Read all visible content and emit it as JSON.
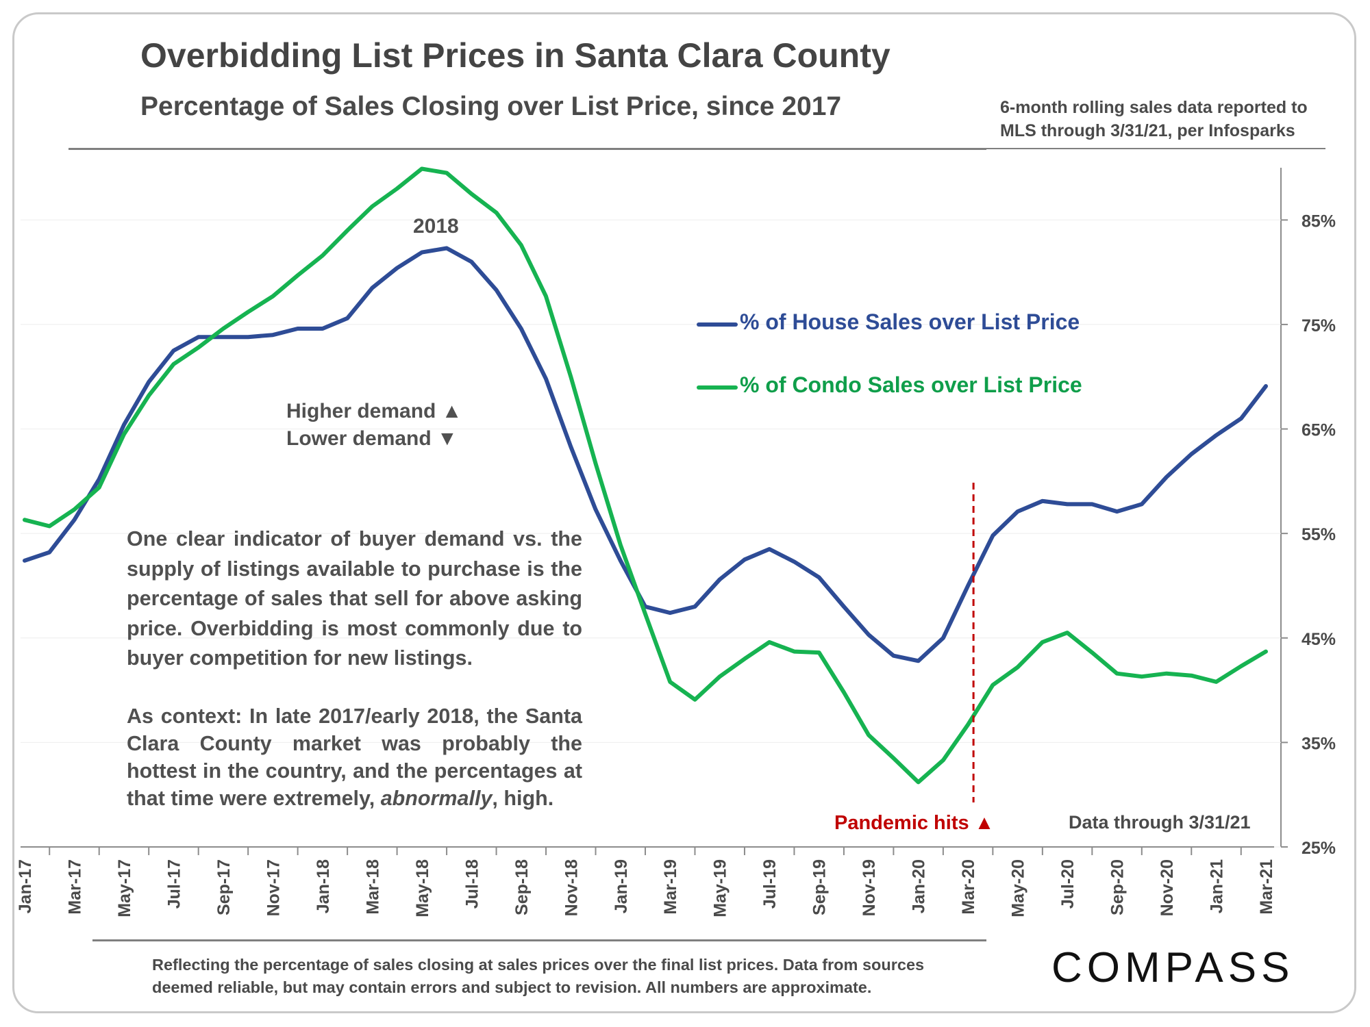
{
  "header": {
    "title": "Overbidding List Prices in Santa Clara County",
    "subtitle": "Percentage of Sales Closing over List Price, since 2017",
    "source_note": "6-month rolling sales data reported to MLS through 3/31/21, per Infosparks"
  },
  "annotations": {
    "peak_label": "2018",
    "higher_demand": "Higher demand ▲",
    "lower_demand": "Lower demand ▼",
    "paragraph1": "One clear indicator of buyer demand vs. the supply of listings available to purchase is the percentage of sales that sell for above asking price. Overbidding is most commonly due to buyer competition for new listings.",
    "paragraph2_start": "As context: In late 2017/early 2018, the Santa Clara County market was probably the hottest in the country, and the percentages at that time were extremely, ",
    "paragraph2_emph": "abnormally",
    "paragraph2_end": ", high.",
    "pandemic": "Pandemic hits ▲",
    "data_through": "Data through 3/31/21"
  },
  "footer": {
    "footnote": "Reflecting the percentage of sales closing at sales prices over the final list prices. Data from sources deemed reliable, but may contain errors and subject to revision. All numbers are approximate.",
    "logo": "COMPASS"
  },
  "colors": {
    "house": "#2e4c96",
    "condo": "#16b351",
    "pandemic_line": "#c00000"
  },
  "chart_data": {
    "type": "line",
    "title": "Overbidding List Prices in Santa Clara County",
    "subtitle": "Percentage of Sales Closing over List Price, since 2017",
    "y_axis_side": "right",
    "ylim": [
      25,
      90
    ],
    "yticks": [
      25,
      35,
      45,
      55,
      65,
      75,
      85
    ],
    "ytick_labels": [
      "25%",
      "35%",
      "45%",
      "55%",
      "65%",
      "75%",
      "85%"
    ],
    "x_tick_labels": [
      "Jan-17",
      "Mar-17",
      "May-17",
      "Jul-17",
      "Sep-17",
      "Nov-17",
      "Jan-18",
      "Mar-18",
      "May-18",
      "Jul-18",
      "Sep-18",
      "Nov-18",
      "Jan-19",
      "Mar-19",
      "May-19",
      "Jul-19",
      "Sep-19",
      "Nov-19",
      "Jan-20",
      "Mar-20",
      "May-20",
      "Jul-20",
      "Sep-20",
      "Nov-20",
      "Jan-21",
      "Mar-21"
    ],
    "x": [
      "Jan-17",
      "Feb-17",
      "Mar-17",
      "Apr-17",
      "May-17",
      "Jun-17",
      "Jul-17",
      "Aug-17",
      "Sep-17",
      "Oct-17",
      "Nov-17",
      "Dec-17",
      "Jan-18",
      "Feb-18",
      "Mar-18",
      "Apr-18",
      "May-18",
      "Jun-18",
      "Jul-18",
      "Aug-18",
      "Sep-18",
      "Oct-18",
      "Nov-18",
      "Dec-18",
      "Jan-19",
      "Feb-19",
      "Mar-19",
      "Apr-19",
      "May-19",
      "Jun-19",
      "Jul-19",
      "Aug-19",
      "Sep-19",
      "Oct-19",
      "Nov-19",
      "Dec-19",
      "Jan-20",
      "Feb-20",
      "Mar-20",
      "Apr-20",
      "May-20",
      "Jun-20",
      "Jul-20",
      "Aug-20",
      "Sep-20",
      "Oct-20",
      "Nov-20",
      "Dec-20",
      "Jan-21",
      "Feb-21",
      "Mar-21"
    ],
    "series": [
      {
        "name": "% of House Sales over List Price",
        "values": [
          52.4,
          53.2,
          56.3,
          60.2,
          65.4,
          69.5,
          72.5,
          73.8,
          73.8,
          73.8,
          74.0,
          74.6,
          74.6,
          75.6,
          78.5,
          80.4,
          81.9,
          82.3,
          81.0,
          78.3,
          74.6,
          69.8,
          63.3,
          57.3,
          52.4,
          48.0,
          47.4,
          48.0,
          50.6,
          52.5,
          53.5,
          52.3,
          50.8,
          48.0,
          45.3,
          43.3,
          42.8,
          45.0,
          50.0,
          54.8,
          57.1,
          58.1,
          57.8,
          57.8,
          57.1,
          57.8,
          60.4,
          62.6,
          64.4,
          66.0,
          69.1
        ]
      },
      {
        "name": "% of Condo Sales over List Price",
        "values": [
          56.3,
          55.7,
          57.3,
          59.4,
          64.5,
          68.2,
          71.2,
          72.8,
          74.6,
          76.2,
          77.7,
          79.7,
          81.6,
          84.0,
          86.3,
          88.0,
          89.9,
          89.5,
          87.5,
          85.7,
          82.6,
          77.7,
          70.0,
          61.7,
          53.9,
          47.3,
          40.8,
          39.1,
          41.3,
          43.0,
          44.6,
          43.7,
          43.6,
          39.8,
          35.7,
          33.5,
          31.2,
          33.3,
          36.7,
          40.5,
          42.2,
          44.6,
          45.5,
          43.6,
          41.6,
          41.3,
          41.6,
          41.4,
          40.8,
          42.3,
          43.7
        ]
      }
    ],
    "annotations": [
      {
        "text": "2018",
        "x": "May-18"
      },
      {
        "text": "Pandemic hits",
        "x": "Mar-20",
        "style": "dashed vertical line"
      }
    ],
    "legend_placement": "right-center",
    "grid": false
  }
}
